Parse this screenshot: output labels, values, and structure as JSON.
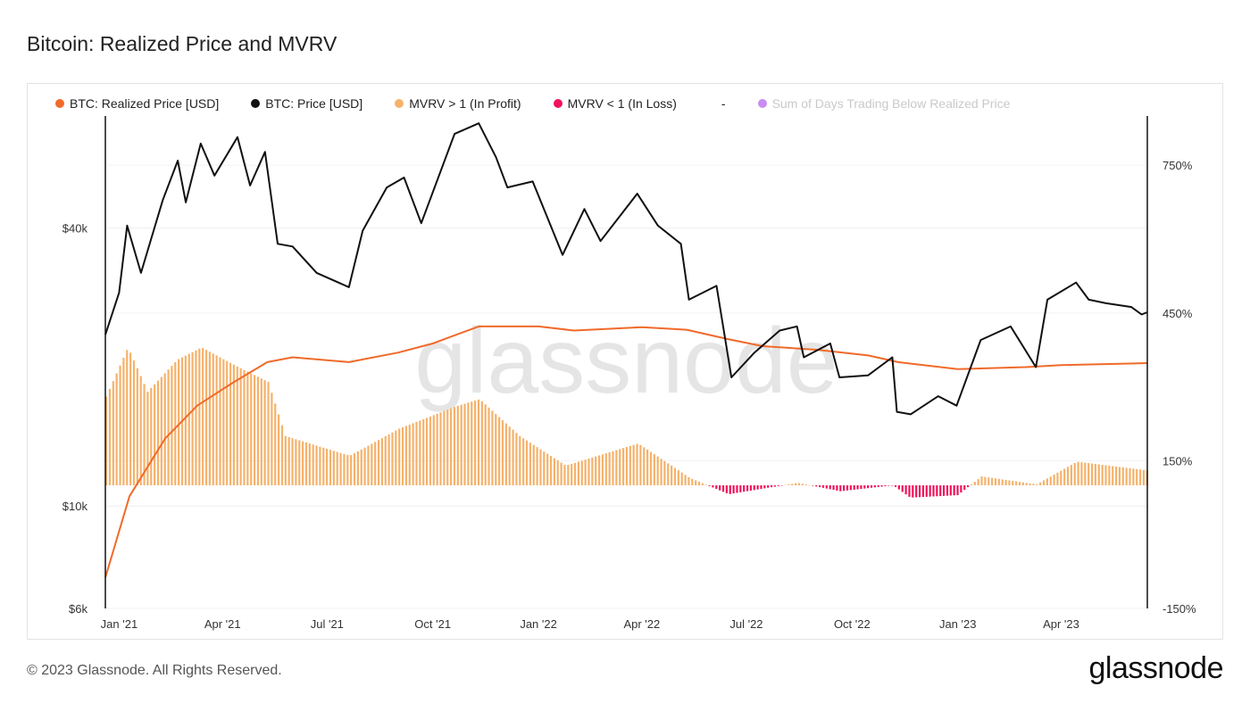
{
  "title": "Bitcoin: Realized Price and MVRV",
  "legend": [
    {
      "label": "BTC: Realized Price [USD]",
      "color": "#f06a2a",
      "muted": false
    },
    {
      "label": "BTC: Price [USD]",
      "color": "#111111",
      "muted": false
    },
    {
      "label": "MVRV > 1 (In Profit)",
      "color": "#f5b26b",
      "muted": false
    },
    {
      "label": "MVRV < 1 (In Loss)",
      "color": "#f0125a",
      "muted": false
    },
    {
      "label": "Sum of Days Trading Below Realized Price",
      "color": "#c98cf0",
      "muted": true
    }
  ],
  "legend_separator": "-",
  "watermark": "glassnode",
  "footer": {
    "copyright": "© 2023 Glassnode. All Rights Reserved.",
    "logo": "glassnode"
  },
  "chart_data": {
    "type": "line",
    "x_tick_labels": [
      "Jan '21",
      "Apr '21",
      "Jul '21",
      "Oct '21",
      "Jan '22",
      "Apr '22",
      "Jul '22",
      "Oct '22",
      "Jan '23",
      "Apr '23"
    ],
    "x_tick_months": [
      0,
      3,
      6,
      9,
      12,
      15,
      18,
      21,
      24,
      27
    ],
    "x_range": [
      "2020-12-20",
      "2023-06-15"
    ],
    "left_axis": {
      "scale": "log",
      "ticks": [
        40000,
        10000,
        6000
      ],
      "tick_labels": [
        "$40k",
        "$10k",
        "$6k"
      ],
      "range": [
        6000,
        70000
      ]
    },
    "right_axis": {
      "ticks": [
        750,
        450,
        150,
        -150
      ],
      "tick_labels": [
        "750%",
        "450%",
        "150%",
        "-150%"
      ],
      "range": [
        -150,
        850
      ]
    },
    "grid": true,
    "series": [
      {
        "name": "BTC: Price [USD]",
        "axis": "left",
        "color": "#111111",
        "points": [
          [
            "2020-12-20",
            23500
          ],
          [
            "2021-01-01",
            29000
          ],
          [
            "2021-01-08",
            40500
          ],
          [
            "2021-01-20",
            32000
          ],
          [
            "2021-02-08",
            46000
          ],
          [
            "2021-02-21",
            56000
          ],
          [
            "2021-02-28",
            45500
          ],
          [
            "2021-03-13",
            61000
          ],
          [
            "2021-03-25",
            52000
          ],
          [
            "2021-04-14",
            63000
          ],
          [
            "2021-04-25",
            49500
          ],
          [
            "2021-05-08",
            58500
          ],
          [
            "2021-05-19",
            37000
          ],
          [
            "2021-06-01",
            36500
          ],
          [
            "2021-06-22",
            32000
          ],
          [
            "2021-07-20",
            29800
          ],
          [
            "2021-08-01",
            39500
          ],
          [
            "2021-08-22",
            49000
          ],
          [
            "2021-09-06",
            51500
          ],
          [
            "2021-09-21",
            41000
          ],
          [
            "2021-10-20",
            64000
          ],
          [
            "2021-11-10",
            67500
          ],
          [
            "2021-11-25",
            57000
          ],
          [
            "2021-12-05",
            49000
          ],
          [
            "2021-12-27",
            50500
          ],
          [
            "2022-01-22",
            35000
          ],
          [
            "2022-02-10",
            44000
          ],
          [
            "2022-02-24",
            37500
          ],
          [
            "2022-03-28",
            47500
          ],
          [
            "2022-04-15",
            40500
          ],
          [
            "2022-05-05",
            37000
          ],
          [
            "2022-05-12",
            28000
          ],
          [
            "2022-06-05",
            30000
          ],
          [
            "2022-06-18",
            19000
          ],
          [
            "2022-07-08",
            21500
          ],
          [
            "2022-07-30",
            24000
          ],
          [
            "2022-08-14",
            24500
          ],
          [
            "2022-08-20",
            21000
          ],
          [
            "2022-09-12",
            22500
          ],
          [
            "2022-09-20",
            19000
          ],
          [
            "2022-10-15",
            19200
          ],
          [
            "2022-11-05",
            21000
          ],
          [
            "2022-11-09",
            16000
          ],
          [
            "2022-11-21",
            15800
          ],
          [
            "2022-12-15",
            17300
          ],
          [
            "2022-12-31",
            16500
          ],
          [
            "2023-01-21",
            22900
          ],
          [
            "2023-02-16",
            24500
          ],
          [
            "2023-03-10",
            20000
          ],
          [
            "2023-03-20",
            28000
          ],
          [
            "2023-04-14",
            30500
          ],
          [
            "2023-04-25",
            28000
          ],
          [
            "2023-05-10",
            27500
          ],
          [
            "2023-06-01",
            27000
          ],
          [
            "2023-06-10",
            26000
          ],
          [
            "2023-06-15",
            26300
          ]
        ]
      },
      {
        "name": "BTC: Realized Price [USD]",
        "axis": "left",
        "color": "#f06a2a",
        "points": [
          [
            "2020-12-20",
            7000
          ],
          [
            "2021-01-10",
            10500
          ],
          [
            "2021-02-10",
            14000
          ],
          [
            "2021-03-10",
            16500
          ],
          [
            "2021-04-10",
            18500
          ],
          [
            "2021-05-10",
            20500
          ],
          [
            "2021-06-01",
            21000
          ],
          [
            "2021-07-20",
            20500
          ],
          [
            "2021-09-01",
            21500
          ],
          [
            "2021-10-01",
            22500
          ],
          [
            "2021-11-10",
            24500
          ],
          [
            "2022-01-01",
            24500
          ],
          [
            "2022-02-01",
            24000
          ],
          [
            "2022-04-01",
            24400
          ],
          [
            "2022-05-10",
            24100
          ],
          [
            "2022-06-15",
            23000
          ],
          [
            "2022-07-15",
            22200
          ],
          [
            "2022-09-01",
            21800
          ],
          [
            "2022-10-15",
            21200
          ],
          [
            "2022-11-10",
            20500
          ],
          [
            "2023-01-01",
            19800
          ],
          [
            "2023-03-01",
            20000
          ],
          [
            "2023-04-01",
            20200
          ],
          [
            "2023-06-15",
            20400
          ]
        ]
      },
      {
        "name": "MVRV",
        "axis": "right",
        "type": "bar",
        "color_positive": "#f5b26b",
        "color_negative": "#f0125a",
        "baseline": 100,
        "points": [
          [
            "2020-12-20",
            280
          ],
          [
            "2021-01-08",
            380
          ],
          [
            "2021-01-25",
            290
          ],
          [
            "2021-02-20",
            355
          ],
          [
            "2021-03-13",
            380
          ],
          [
            "2021-04-14",
            340
          ],
          [
            "2021-05-10",
            310
          ],
          [
            "2021-05-25",
            200
          ],
          [
            "2021-07-20",
            160
          ],
          [
            "2021-09-01",
            215
          ],
          [
            "2021-10-20",
            260
          ],
          [
            "2021-11-10",
            275
          ],
          [
            "2021-12-15",
            200
          ],
          [
            "2022-01-24",
            140
          ],
          [
            "2022-03-28",
            185
          ],
          [
            "2022-05-12",
            115
          ],
          [
            "2022-06-15",
            82
          ],
          [
            "2022-08-14",
            105
          ],
          [
            "2022-09-20",
            88
          ],
          [
            "2022-11-05",
            100
          ],
          [
            "2022-11-20",
            75
          ],
          [
            "2022-12-31",
            80
          ],
          [
            "2023-01-21",
            118
          ],
          [
            "2023-03-10",
            102
          ],
          [
            "2023-04-14",
            148
          ],
          [
            "2023-06-15",
            130
          ]
        ]
      }
    ]
  }
}
